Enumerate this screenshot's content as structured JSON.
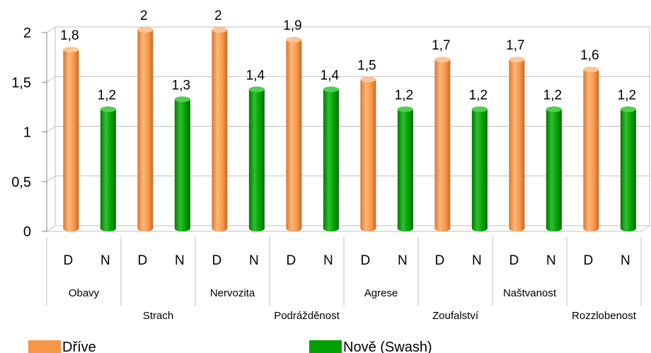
{
  "chart_data": {
    "type": "bar",
    "categories": [
      "Obavy",
      "Strach",
      "Nervozita",
      "Podrážděnost",
      "Agrese",
      "Zoufalství",
      "Naštvanost",
      "Rozzlobenost"
    ],
    "sub_categories": [
      "D",
      "N"
    ],
    "series": [
      {
        "name": "Dříve",
        "color": "#f79646",
        "values": [
          1.8,
          2,
          2,
          1.9,
          1.5,
          1.7,
          1.7,
          1.6
        ],
        "labels": [
          "1,8",
          "2",
          "2",
          "1,9",
          "1,5",
          "1,7",
          "1,7",
          "1,6"
        ]
      },
      {
        "name": "Nově (Swash)",
        "color": "#00a000",
        "values": [
          1.2,
          1.3,
          1.4,
          1.4,
          1.2,
          1.2,
          1.2,
          1.2
        ],
        "labels": [
          "1,2",
          "1,3",
          "1,4",
          "1,4",
          "1,2",
          "1,2",
          "1,2",
          "1,2"
        ]
      }
    ],
    "y_ticks": [
      "0",
      "0,5",
      "1",
      "1,5",
      "2"
    ],
    "ylim": [
      0,
      2
    ],
    "grid": true,
    "legend_position": "bottom"
  }
}
